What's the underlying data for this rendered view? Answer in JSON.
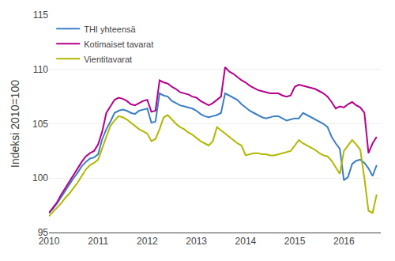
{
  "chart_data": {
    "type": "line",
    "ylabel": "Indeksi 2010=100",
    "ylim": [
      95,
      115
    ],
    "yticks": [
      95,
      100,
      105,
      110,
      115
    ],
    "xlim": [
      2010.0,
      2016.75
    ],
    "xticks": [
      2010,
      2011,
      2012,
      2013,
      2014,
      2015,
      2016
    ],
    "grid": "y",
    "legend": "upper left",
    "x": [
      2010.0,
      2010.0833333333333,
      2010.1666666666667,
      2010.25,
      2010.3333333333333,
      2010.4166666666667,
      2010.5,
      2010.5833333333333,
      2010.6666666666667,
      2010.75,
      2010.8333333333333,
      2010.9166666666667,
      2011.0,
      2011.0833333333333,
      2011.1666666666667,
      2011.25,
      2011.3333333333333,
      2011.4166666666667,
      2011.5,
      2011.5833333333333,
      2011.6666666666667,
      2011.75,
      2011.8333333333333,
      2011.9166666666667,
      2012.0,
      2012.0833333333333,
      2012.1666666666667,
      2012.25,
      2012.3333333333333,
      2012.4166666666667,
      2012.5,
      2012.5833333333333,
      2012.6666666666667,
      2012.75,
      2012.8333333333333,
      2012.9166666666667,
      2013.0,
      2013.0833333333333,
      2013.1666666666667,
      2013.25,
      2013.3333333333333,
      2013.4166666666667,
      2013.5,
      2013.5833333333333,
      2013.6666666666667,
      2013.75,
      2013.8333333333333,
      2013.9166666666667,
      2014.0,
      2014.0833333333333,
      2014.1666666666667,
      2014.25,
      2014.3333333333333,
      2014.4166666666667,
      2014.5,
      2014.5833333333333,
      2014.6666666666667,
      2014.75,
      2014.8333333333333,
      2014.9166666666667,
      2015.0,
      2015.0833333333333,
      2015.1666666666667,
      2015.25,
      2015.3333333333333,
      2015.4166666666667,
      2015.5,
      2015.5833333333333,
      2015.6666666666667,
      2015.75,
      2015.8333333333333,
      2015.9166666666667,
      2016.0,
      2016.0833333333333,
      2016.1666666666667,
      2016.25,
      2016.3333333333333,
      2016.4166666666667,
      2016.5,
      2016.5833333333333,
      2016.6666666666667
    ],
    "series": [
      {
        "name": "THI yhteensä",
        "color": "#3b7fc4",
        "values": [
          96.8,
          97.2,
          97.7,
          98.3,
          98.9,
          99.5,
          100.0,
          100.5,
          101.1,
          101.5,
          101.8,
          101.9,
          102.2,
          103.6,
          104.5,
          105.2,
          106.0,
          106.2,
          106.3,
          106.2,
          106.0,
          105.9,
          106.2,
          106.3,
          106.4,
          105.1,
          105.2,
          107.8,
          107.6,
          107.5,
          107.1,
          106.9,
          106.7,
          106.6,
          106.5,
          106.4,
          106.2,
          105.9,
          105.7,
          105.6,
          105.7,
          105.8,
          106.0,
          107.8,
          107.6,
          107.4,
          107.2,
          106.8,
          106.5,
          106.2,
          106.0,
          105.8,
          105.6,
          105.5,
          105.6,
          105.7,
          105.7,
          105.5,
          105.3,
          105.4,
          105.5,
          105.5,
          106.0,
          105.8,
          105.6,
          105.4,
          105.2,
          105.0,
          104.7,
          103.8,
          103.2,
          102.7,
          99.8,
          100.1,
          101.3,
          101.6,
          101.7,
          101.4,
          100.9,
          100.2,
          101.2
        ]
      },
      {
        "name": "Kotimaiset tavarat",
        "color": "#b5008b",
        "values": [
          96.8,
          97.3,
          97.8,
          98.5,
          99.1,
          99.7,
          100.3,
          100.9,
          101.5,
          102.0,
          102.3,
          102.5,
          103.1,
          104.3,
          106.0,
          106.6,
          107.2,
          107.4,
          107.3,
          107.1,
          106.8,
          106.7,
          106.9,
          107.1,
          107.2,
          106.1,
          106.2,
          109.0,
          108.8,
          108.7,
          108.4,
          108.2,
          107.9,
          107.8,
          107.7,
          107.5,
          107.4,
          107.1,
          106.9,
          106.7,
          106.9,
          107.2,
          107.5,
          110.2,
          109.8,
          109.6,
          109.3,
          109.0,
          108.8,
          108.5,
          108.3,
          108.1,
          108.0,
          107.9,
          107.8,
          107.8,
          107.8,
          107.6,
          107.5,
          107.6,
          108.4,
          108.6,
          108.5,
          108.4,
          108.3,
          108.2,
          108.0,
          107.8,
          107.5,
          107.0,
          106.4,
          106.6,
          106.5,
          106.8,
          107.0,
          106.7,
          106.5,
          106.0,
          102.3,
          103.2,
          103.8
        ]
      },
      {
        "name": "Vientitavarat",
        "color": "#b0b800",
        "values": [
          96.5,
          96.9,
          97.3,
          97.7,
          98.2,
          98.6,
          99.1,
          99.6,
          100.2,
          100.8,
          101.2,
          101.4,
          101.7,
          102.8,
          103.8,
          104.8,
          105.3,
          105.7,
          105.6,
          105.4,
          105.1,
          104.8,
          104.5,
          104.3,
          104.1,
          103.4,
          103.6,
          104.5,
          105.6,
          105.8,
          105.4,
          105.0,
          104.7,
          104.5,
          104.2,
          104.0,
          103.7,
          103.4,
          103.2,
          103.0,
          103.4,
          104.7,
          104.4,
          104.1,
          103.8,
          103.5,
          103.2,
          103.0,
          102.1,
          102.2,
          102.3,
          102.3,
          102.2,
          102.2,
          102.1,
          102.1,
          102.2,
          102.3,
          102.4,
          102.5,
          103.0,
          103.5,
          103.2,
          103.0,
          102.8,
          102.6,
          102.3,
          102.1,
          102.0,
          101.6,
          101.0,
          100.4,
          102.5,
          103.0,
          103.5,
          103.1,
          102.6,
          100.0,
          97.0,
          96.8,
          98.5
        ]
      }
    ]
  }
}
